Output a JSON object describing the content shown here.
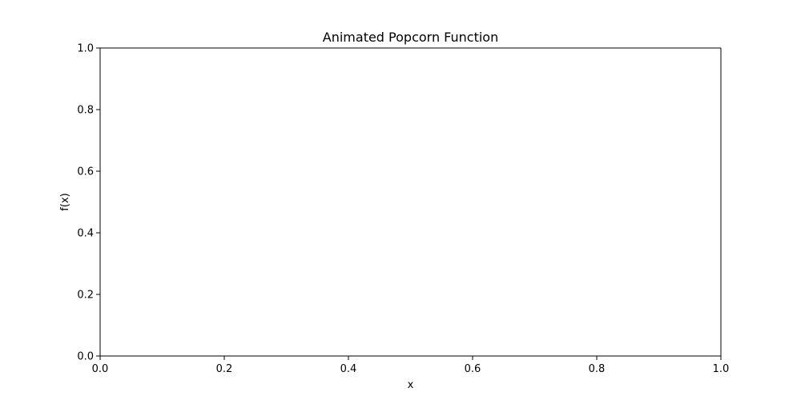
{
  "chart_data": {
    "type": "line",
    "title": "Animated Popcorn Function",
    "xlabel": "x",
    "ylabel": "f(x)",
    "xlim": [
      0.0,
      1.0
    ],
    "ylim": [
      0.0,
      1.0
    ],
    "x_ticks": [
      0.0,
      0.2,
      0.4,
      0.6,
      0.8,
      1.0
    ],
    "y_ticks": [
      0.0,
      0.2,
      0.4,
      0.6,
      0.8,
      1.0
    ],
    "x_tick_labels": [
      "0.0",
      "0.2",
      "0.4",
      "0.6",
      "0.8",
      "1.0"
    ],
    "y_tick_labels": [
      "0.0",
      "0.2",
      "0.4",
      "0.6",
      "0.8",
      "1.0"
    ],
    "grid": false,
    "legend": "none",
    "series": []
  }
}
